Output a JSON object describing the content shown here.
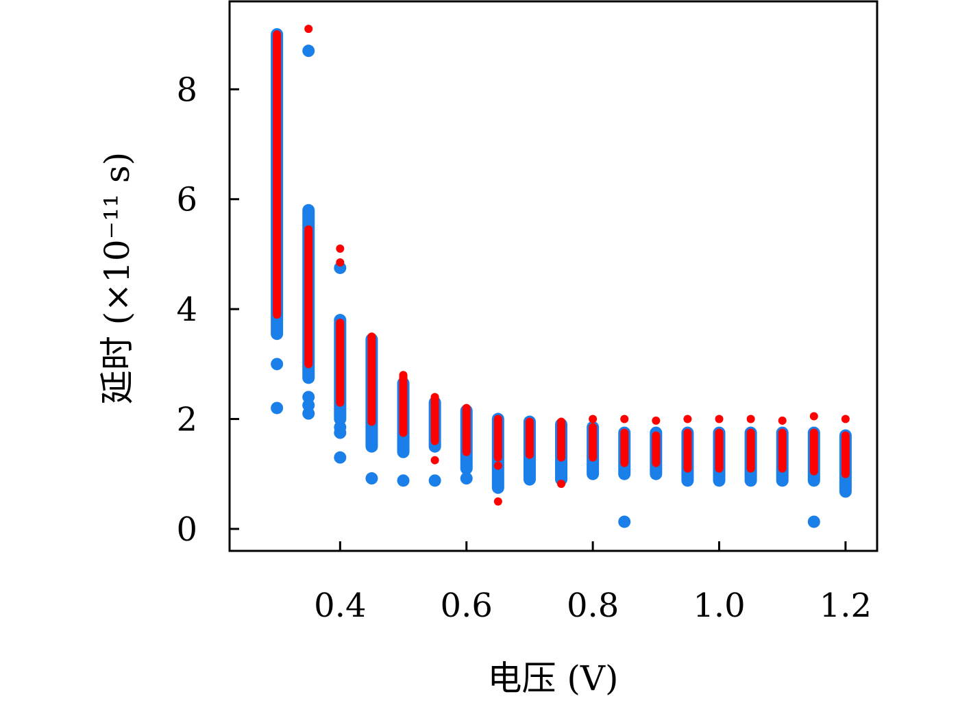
{
  "chart_data": {
    "type": "scatter",
    "title": "",
    "xlabel": "电压 (V)",
    "ylabel": "延时 (×10⁻¹¹ s)",
    "xlim": [
      0.225,
      1.25
    ],
    "ylim": [
      -0.4,
      9.6
    ],
    "x_ticks": [
      0.4,
      0.6,
      0.8,
      1.0,
      1.2
    ],
    "x_tick_labels": [
      "0.4",
      "0.6",
      "0.8",
      "1.0",
      "1.2"
    ],
    "y_ticks": [
      0,
      2,
      4,
      6,
      8
    ],
    "y_tick_labels": [
      "0",
      "2",
      "4",
      "6",
      "8"
    ],
    "grid": false,
    "legend": "none",
    "series": [
      {
        "color": "#1a7fe8",
        "points": [
          {
            "x": 0.3,
            "y_min": 3.55,
            "y_max": 9.0,
            "outliers": [
              3.0,
              2.2
            ]
          },
          {
            "x": 0.35,
            "y_min": 2.75,
            "y_max": 5.8,
            "outliers": [
              8.7,
              2.4,
              2.25,
              2.1
            ]
          },
          {
            "x": 0.4,
            "y_min": 2.0,
            "y_max": 3.8,
            "outliers": [
              4.75,
              1.85,
              1.75,
              1.3
            ]
          },
          {
            "x": 0.45,
            "y_min": 1.5,
            "y_max": 3.45,
            "outliers": [
              0.92
            ]
          },
          {
            "x": 0.5,
            "y_min": 1.4,
            "y_max": 2.65,
            "outliers": [
              0.88
            ]
          },
          {
            "x": 0.55,
            "y_min": 1.5,
            "y_max": 2.3,
            "outliers": [
              0.88
            ]
          },
          {
            "x": 0.6,
            "y_min": 1.1,
            "y_max": 2.15,
            "outliers": [
              0.92
            ]
          },
          {
            "x": 0.65,
            "y_min": 0.75,
            "y_max": 2.0,
            "outliers": []
          },
          {
            "x": 0.7,
            "y_min": 0.9,
            "y_max": 1.95,
            "outliers": []
          },
          {
            "x": 0.75,
            "y_min": 0.9,
            "y_max": 1.9,
            "outliers": []
          },
          {
            "x": 0.8,
            "y_min": 1.0,
            "y_max": 1.85,
            "outliers": []
          },
          {
            "x": 0.85,
            "y_min": 1.0,
            "y_max": 1.75,
            "outliers": [
              0.13
            ]
          },
          {
            "x": 0.9,
            "y_min": 1.0,
            "y_max": 1.75,
            "outliers": []
          },
          {
            "x": 0.95,
            "y_min": 0.88,
            "y_max": 1.75,
            "outliers": []
          },
          {
            "x": 1.0,
            "y_min": 0.88,
            "y_max": 1.75,
            "outliers": []
          },
          {
            "x": 1.05,
            "y_min": 0.88,
            "y_max": 1.75,
            "outliers": []
          },
          {
            "x": 1.1,
            "y_min": 0.88,
            "y_max": 1.75,
            "outliers": []
          },
          {
            "x": 1.15,
            "y_min": 0.88,
            "y_max": 1.75,
            "outliers": [
              0.13
            ]
          },
          {
            "x": 1.2,
            "y_min": 0.68,
            "y_max": 1.7,
            "outliers": []
          }
        ]
      },
      {
        "color": "#ff0000",
        "points": [
          {
            "x": 0.3,
            "y_min": 3.9,
            "y_max": 9.0,
            "outliers": []
          },
          {
            "x": 0.35,
            "y_min": 3.0,
            "y_max": 5.45,
            "outliers": [
              9.1
            ]
          },
          {
            "x": 0.4,
            "y_min": 2.3,
            "y_max": 3.75,
            "outliers": [
              5.1,
              4.85
            ]
          },
          {
            "x": 0.45,
            "y_min": 1.95,
            "y_max": 3.5,
            "outliers": []
          },
          {
            "x": 0.5,
            "y_min": 1.75,
            "y_max": 2.8,
            "outliers": []
          },
          {
            "x": 0.55,
            "y_min": 1.6,
            "y_max": 2.4,
            "outliers": [
              1.25
            ]
          },
          {
            "x": 0.6,
            "y_min": 1.4,
            "y_max": 2.2,
            "outliers": []
          },
          {
            "x": 0.65,
            "y_min": 1.3,
            "y_max": 2.0,
            "outliers": [
              1.15,
              0.5
            ]
          },
          {
            "x": 0.7,
            "y_min": 1.35,
            "y_max": 1.95,
            "outliers": []
          },
          {
            "x": 0.75,
            "y_min": 1.3,
            "y_max": 1.95,
            "outliers": [
              0.82
            ]
          },
          {
            "x": 0.8,
            "y_min": 1.3,
            "y_max": 1.85,
            "outliers": [
              2.0
            ]
          },
          {
            "x": 0.85,
            "y_min": 1.2,
            "y_max": 1.75,
            "outliers": [
              2.0
            ]
          },
          {
            "x": 0.9,
            "y_min": 1.2,
            "y_max": 1.7,
            "outliers": [
              1.97
            ]
          },
          {
            "x": 0.95,
            "y_min": 1.1,
            "y_max": 1.75,
            "outliers": [
              2.0
            ]
          },
          {
            "x": 1.0,
            "y_min": 1.1,
            "y_max": 1.75,
            "outliers": [
              2.0
            ]
          },
          {
            "x": 1.05,
            "y_min": 1.1,
            "y_max": 1.75,
            "outliers": [
              2.0
            ]
          },
          {
            "x": 1.1,
            "y_min": 1.1,
            "y_max": 1.75,
            "outliers": [
              1.97
            ]
          },
          {
            "x": 1.15,
            "y_min": 1.05,
            "y_max": 1.75,
            "outliers": [
              2.05
            ]
          },
          {
            "x": 1.2,
            "y_min": 1.0,
            "y_max": 1.7,
            "outliers": [
              2.0
            ]
          }
        ]
      }
    ]
  }
}
